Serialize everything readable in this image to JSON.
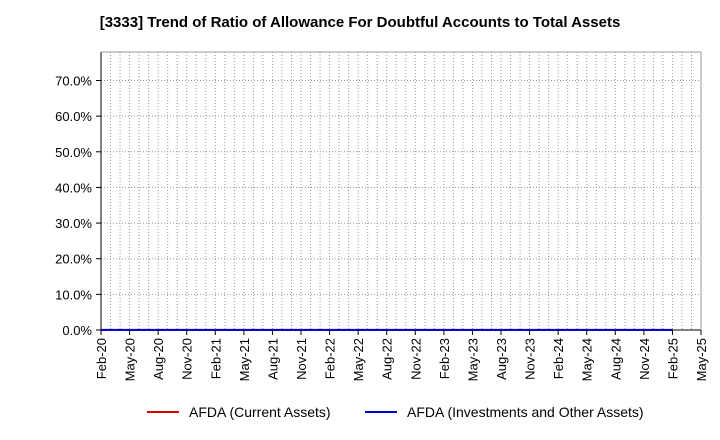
{
  "title": "[3333]  Trend of Ratio of Allowance For Doubtful Accounts to Total Assets",
  "colors": {
    "current": "#dd0000",
    "investments": "#0000cc",
    "grid": "#999999",
    "axis": "#000000"
  },
  "legend": {
    "current": "AFDA (Current Assets)",
    "investments": "AFDA (Investments and Other Assets)"
  },
  "chart_data": {
    "type": "line",
    "title": "[3333]  Trend of Ratio of Allowance For Doubtful Accounts to Total Assets",
    "xlabel": "",
    "ylabel": "",
    "ylim": [
      0,
      0.78
    ],
    "yticks": [
      0,
      0.1,
      0.2,
      0.3,
      0.4,
      0.5,
      0.6,
      0.7
    ],
    "ytick_labels": [
      "0.0%",
      "10.0%",
      "20.0%",
      "30.0%",
      "40.0%",
      "50.0%",
      "60.0%",
      "70.0%"
    ],
    "x_range": [
      "Feb-20",
      "May-25"
    ],
    "xtick_labels": [
      "Feb-20",
      "May-20",
      "Aug-20",
      "Nov-20",
      "Feb-21",
      "May-21",
      "Aug-21",
      "Nov-21",
      "Feb-22",
      "May-22",
      "Aug-22",
      "Nov-22",
      "Feb-23",
      "May-23",
      "Aug-23",
      "Nov-23",
      "Feb-24",
      "May-24",
      "Aug-24",
      "Nov-24",
      "Feb-25",
      "May-25"
    ],
    "grid": true,
    "legend_position": "bottom",
    "series": [
      {
        "name": "AFDA (Current Assets)",
        "color": "#dd0000",
        "x": [
          "Feb-20",
          "Feb-25"
        ],
        "y": [
          0.0,
          0.0
        ]
      },
      {
        "name": "AFDA (Investments and Other Assets)",
        "color": "#0000cc",
        "x": [
          "Feb-20",
          "Feb-25"
        ],
        "y": [
          0.0005,
          0.0005
        ]
      }
    ]
  }
}
